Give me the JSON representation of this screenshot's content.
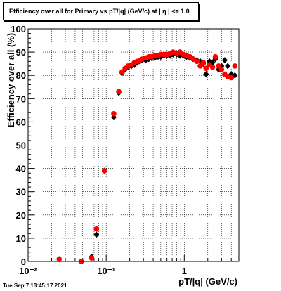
{
  "chart_data": {
    "type": "scatter",
    "title": "Efficiency over all for Primary vs pT/|q| (GeV/c) at |  η | <= 1.0",
    "xlabel": "pT/|q| (GeV/c)",
    "ylabel": "Efficiency over all (%)",
    "xscale": "log",
    "xlim": [
      0.01,
      5.0
    ],
    "ylim": [
      0,
      100
    ],
    "grid": true,
    "x_ticks": [
      {
        "value": 0.01,
        "label": "10⁻²"
      },
      {
        "value": 0.1,
        "label": "10⁻¹"
      },
      {
        "value": 1,
        "label": "1"
      }
    ],
    "y_ticks": [
      0,
      10,
      20,
      30,
      40,
      50,
      60,
      70,
      80,
      90,
      100
    ],
    "series": [
      {
        "color": "#000000",
        "marker": "diamond",
        "points": [
          {
            "x": 0.025,
            "y": 1
          },
          {
            "x": 0.065,
            "y": 2
          },
          {
            "x": 0.075,
            "y": 11.5
          },
          {
            "x": 0.095,
            "y": 39
          },
          {
            "x": 0.125,
            "y": 62
          },
          {
            "x": 0.145,
            "y": 72.5
          },
          {
            "x": 0.16,
            "y": 81
          },
          {
            "x": 0.175,
            "y": 82.5
          },
          {
            "x": 0.19,
            "y": 83.5
          },
          {
            "x": 0.21,
            "y": 84
          },
          {
            "x": 0.23,
            "y": 84.5
          },
          {
            "x": 0.25,
            "y": 85.5
          },
          {
            "x": 0.27,
            "y": 86
          },
          {
            "x": 0.29,
            "y": 86.5
          },
          {
            "x": 0.32,
            "y": 86.5
          },
          {
            "x": 0.35,
            "y": 87
          },
          {
            "x": 0.38,
            "y": 87.5
          },
          {
            "x": 0.42,
            "y": 87.5
          },
          {
            "x": 0.46,
            "y": 88
          },
          {
            "x": 0.5,
            "y": 88
          },
          {
            "x": 0.55,
            "y": 88.5
          },
          {
            "x": 0.6,
            "y": 88.5
          },
          {
            "x": 0.66,
            "y": 88.5
          },
          {
            "x": 0.72,
            "y": 89
          },
          {
            "x": 0.8,
            "y": 89
          },
          {
            "x": 0.88,
            "y": 88.5
          },
          {
            "x": 0.97,
            "y": 88.5
          },
          {
            "x": 1.07,
            "y": 88
          },
          {
            "x": 1.18,
            "y": 87.5
          },
          {
            "x": 1.3,
            "y": 87
          },
          {
            "x": 1.45,
            "y": 86.5
          },
          {
            "x": 1.6,
            "y": 86
          },
          {
            "x": 1.75,
            "y": 85
          },
          {
            "x": 1.9,
            "y": 80.5
          },
          {
            "x": 2.1,
            "y": 86
          },
          {
            "x": 2.3,
            "y": 85.5
          },
          {
            "x": 2.5,
            "y": 87
          },
          {
            "x": 2.75,
            "y": 82.5
          },
          {
            "x": 3.0,
            "y": 84
          },
          {
            "x": 3.3,
            "y": 86.5
          },
          {
            "x": 3.6,
            "y": 84
          },
          {
            "x": 4.0,
            "y": 80.5
          },
          {
            "x": 4.45,
            "y": 80
          }
        ]
      },
      {
        "color": "#ff0000",
        "marker": "circle",
        "points": [
          {
            "x": 0.025,
            "y": 1
          },
          {
            "x": 0.048,
            "y": 0
          },
          {
            "x": 0.065,
            "y": 1.5
          },
          {
            "x": 0.075,
            "y": 14
          },
          {
            "x": 0.095,
            "y": 39
          },
          {
            "x": 0.125,
            "y": 63.5
          },
          {
            "x": 0.145,
            "y": 73
          },
          {
            "x": 0.16,
            "y": 81.5
          },
          {
            "x": 0.175,
            "y": 83
          },
          {
            "x": 0.19,
            "y": 84
          },
          {
            "x": 0.21,
            "y": 84.5
          },
          {
            "x": 0.23,
            "y": 85.5
          },
          {
            "x": 0.25,
            "y": 86
          },
          {
            "x": 0.27,
            "y": 86.5
          },
          {
            "x": 0.29,
            "y": 87
          },
          {
            "x": 0.32,
            "y": 87.5
          },
          {
            "x": 0.35,
            "y": 88
          },
          {
            "x": 0.38,
            "y": 88
          },
          {
            "x": 0.42,
            "y": 88.5
          },
          {
            "x": 0.46,
            "y": 88.5
          },
          {
            "x": 0.5,
            "y": 89
          },
          {
            "x": 0.55,
            "y": 89
          },
          {
            "x": 0.6,
            "y": 89
          },
          {
            "x": 0.66,
            "y": 89.5
          },
          {
            "x": 0.72,
            "y": 90
          },
          {
            "x": 0.8,
            "y": 89.5
          },
          {
            "x": 0.88,
            "y": 90
          },
          {
            "x": 0.97,
            "y": 89
          },
          {
            "x": 1.07,
            "y": 88.5
          },
          {
            "x": 1.18,
            "y": 88
          },
          {
            "x": 1.3,
            "y": 87
          },
          {
            "x": 1.45,
            "y": 86
          },
          {
            "x": 1.6,
            "y": 84
          },
          {
            "x": 1.75,
            "y": 85.5
          },
          {
            "x": 1.9,
            "y": 83
          },
          {
            "x": 2.1,
            "y": 84.5
          },
          {
            "x": 2.3,
            "y": 83.5
          },
          {
            "x": 2.5,
            "y": 88
          },
          {
            "x": 2.75,
            "y": 84
          },
          {
            "x": 3.0,
            "y": 82.5
          },
          {
            "x": 3.3,
            "y": 80.5
          },
          {
            "x": 3.6,
            "y": 79.5
          },
          {
            "x": 4.0,
            "y": 79
          },
          {
            "x": 4.45,
            "y": 84
          }
        ]
      }
    ]
  },
  "timestamp": "Tue Sep  7 13:45:17 2021"
}
